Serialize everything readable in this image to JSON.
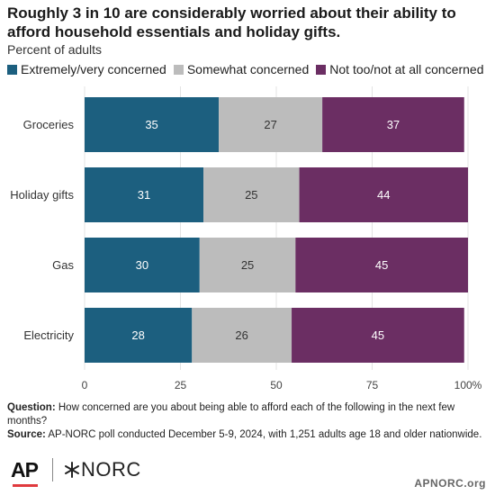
{
  "title": "Roughly 3 in 10 are considerably worried about their ability to afford household essentials and holiday gifts.",
  "subtitle": "Percent of adults",
  "chart_data": {
    "type": "bar",
    "orientation": "horizontal",
    "stacked": true,
    "categories": [
      "Groceries",
      "Holiday gifts",
      "Gas",
      "Electricity"
    ],
    "series": [
      {
        "name": "Extremely/very concerned",
        "color": "#1c5f7f",
        "values": [
          35,
          31,
          30,
          28
        ]
      },
      {
        "name": "Somewhat concerned",
        "color": "#bcbcbc",
        "values": [
          27,
          25,
          25,
          26
        ]
      },
      {
        "name": "Not too/not at all concerned",
        "color": "#6b2e63",
        "values": [
          37,
          44,
          45,
          45
        ]
      }
    ],
    "xlim": [
      0,
      100
    ],
    "xticks": [
      "0",
      "25",
      "50",
      "75",
      "100%"
    ],
    "xtick_values": [
      0,
      25,
      50,
      75,
      100
    ],
    "legend_position": "top",
    "grid": true
  },
  "notes": {
    "question_label": "Question:",
    "question_text": "How concerned are you about being able to afford each of the following in the next few months?",
    "source_label": "Source:",
    "source_text": "AP-NORC poll conducted December 5-9, 2024, with 1,251 adults age 18 and older nationwide."
  },
  "logos": {
    "ap": "AP",
    "norc": "NORC"
  },
  "site": "APNORC.org"
}
